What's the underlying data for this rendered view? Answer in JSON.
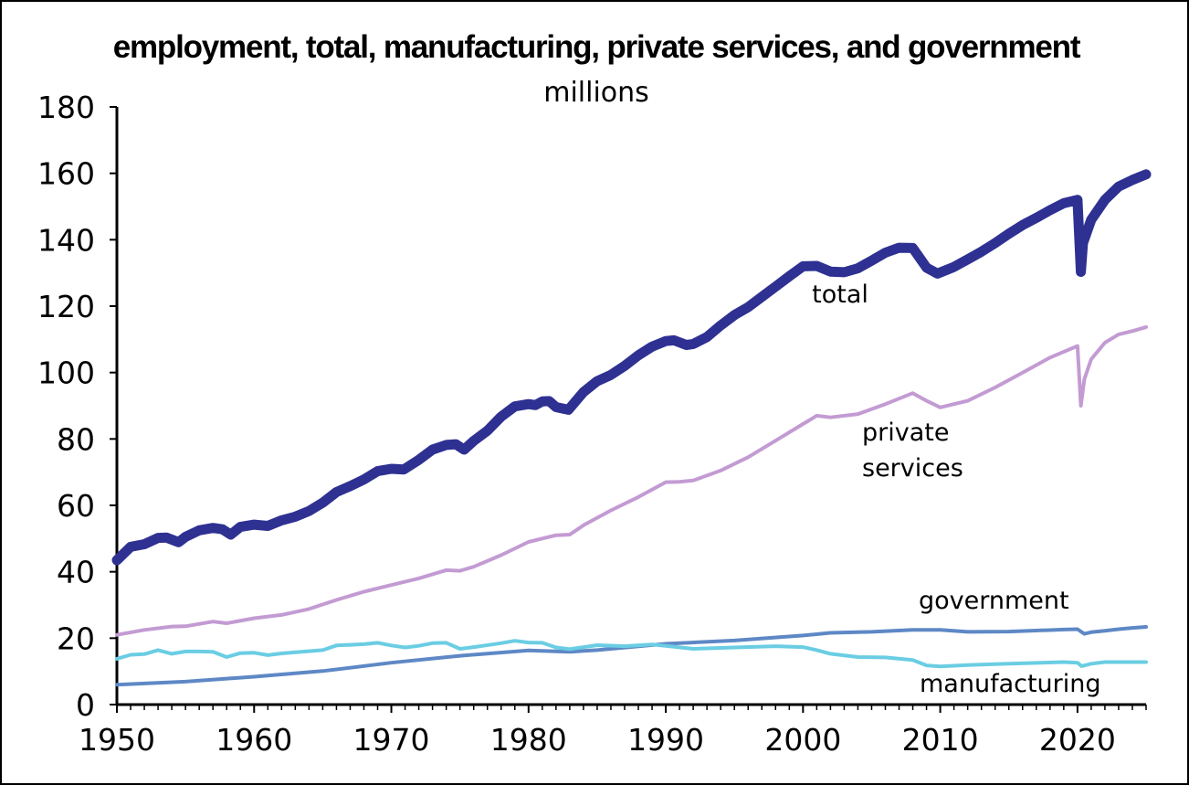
{
  "chart_data": {
    "type": "line",
    "title": "employment, total, manufacturing, private services, and government",
    "subtitle": "millions",
    "xlabel": "",
    "ylabel": "",
    "xlim": [
      1950,
      2025
    ],
    "ylim": [
      0,
      180
    ],
    "y_ticks": [
      0,
      20,
      40,
      60,
      80,
      100,
      120,
      140,
      160,
      180
    ],
    "x_ticks": [
      1950,
      1960,
      1970,
      1980,
      1990,
      2000,
      2010,
      2020
    ],
    "grid": false,
    "legend": "none (labels placed directly on lines)",
    "series": [
      {
        "name": "total",
        "label_lines": [
          "total"
        ],
        "color": "#2E3192",
        "width": 11,
        "x": [
          1950,
          1951,
          1952,
          1953,
          1953.6,
          1954.5,
          1955,
          1956,
          1957,
          1957.7,
          1958.3,
          1959,
          1960,
          1961,
          1962,
          1963,
          1964,
          1965,
          1966,
          1967,
          1968,
          1969,
          1970,
          1970.9,
          1972,
          1973,
          1974,
          1974.7,
          1975.3,
          1976,
          1977,
          1978,
          1979,
          1980,
          1980.5,
          1981,
          1981.5,
          1982,
          1982.9,
          1984,
          1985,
          1986,
          1987,
          1988,
          1989,
          1990,
          1990.6,
          1991.5,
          1992,
          1993,
          1994,
          1995,
          1996,
          1997,
          1998,
          1999,
          2000,
          2001,
          2002,
          2003,
          2004,
          2005,
          2006,
          2007,
          2008,
          2009,
          2009.8,
          2011,
          2012,
          2013,
          2014,
          2015,
          2016,
          2017,
          2018,
          2019,
          2020,
          2020.25,
          2020.4,
          2021,
          2022,
          2023,
          2024,
          2025
        ],
        "values": [
          43.5,
          47.5,
          48.3,
          50.2,
          50.3,
          48.9,
          50.5,
          52.5,
          53.2,
          52.8,
          51.2,
          53.5,
          54.2,
          53.8,
          55.5,
          56.6,
          58.3,
          60.8,
          64.0,
          65.8,
          67.8,
          70.3,
          71.0,
          70.8,
          73.7,
          76.8,
          78.2,
          78.4,
          76.8,
          79.4,
          82.5,
          86.7,
          89.8,
          90.5,
          90.2,
          91.3,
          91.4,
          89.6,
          88.8,
          94.1,
          97.4,
          99.3,
          102.0,
          105.2,
          107.8,
          109.5,
          109.7,
          108.3,
          108.6,
          110.7,
          114.2,
          117.3,
          119.7,
          122.8,
          125.9,
          129.0,
          132.0,
          132.1,
          130.4,
          130.2,
          131.4,
          133.7,
          136.1,
          137.6,
          137.5,
          131.6,
          129.8,
          131.8,
          134.1,
          136.4,
          139.0,
          141.8,
          144.4,
          146.6,
          148.9,
          151.0,
          152.0,
          130.3,
          139.0,
          146.0,
          152.0,
          156.0,
          158.0,
          159.7
        ]
      },
      {
        "name": "private services",
        "label_lines": [
          "private",
          "services"
        ],
        "color": "#C39BD3",
        "width": 4,
        "x": [
          1950,
          1952,
          1954,
          1955,
          1957,
          1958,
          1960,
          1962,
          1964,
          1966,
          1968,
          1970,
          1972,
          1974,
          1975,
          1976,
          1978,
          1980,
          1981,
          1982,
          1983,
          1984,
          1986,
          1988,
          1990,
          1991,
          1992,
          1994,
          1996,
          1998,
          2000,
          2001,
          2002,
          2004,
          2006,
          2008,
          2009,
          2010,
          2012,
          2014,
          2016,
          2018,
          2020,
          2020.25,
          2020.5,
          2021,
          2022,
          2023,
          2024,
          2025
        ],
        "values": [
          21.0,
          22.5,
          23.5,
          23.6,
          25.0,
          24.5,
          26.0,
          27.0,
          28.8,
          31.5,
          34.0,
          36.0,
          38.0,
          40.5,
          40.3,
          41.5,
          45.0,
          49.0,
          50.0,
          51.0,
          51.2,
          54.0,
          58.5,
          62.5,
          67.0,
          67.1,
          67.5,
          70.5,
          74.5,
          79.5,
          84.5,
          87.0,
          86.5,
          87.5,
          90.5,
          93.8,
          91.5,
          89.5,
          91.5,
          95.5,
          100.0,
          104.5,
          108.0,
          90.0,
          98.0,
          104.0,
          109.0,
          111.5,
          112.5,
          113.7
        ]
      },
      {
        "name": "government",
        "label_lines": [
          "government"
        ],
        "color": "#5E88C5",
        "width": 4,
        "x": [
          1950,
          1955,
          1960,
          1965,
          1970,
          1975,
          1980,
          1983,
          1985,
          1990,
          1995,
          2000,
          2002,
          2005,
          2008,
          2010,
          2012,
          2015,
          2019,
          2020,
          2020.5,
          2021,
          2022,
          2023,
          2024,
          2025
        ],
        "values": [
          6.0,
          6.9,
          8.4,
          10.1,
          12.6,
          14.7,
          16.3,
          15.9,
          16.4,
          18.3,
          19.3,
          20.8,
          21.6,
          21.9,
          22.5,
          22.5,
          21.9,
          22.0,
          22.6,
          22.7,
          21.3,
          21.8,
          22.2,
          22.7,
          23.1,
          23.4
        ]
      },
      {
        "name": "manufacturing",
        "label_lines": [
          "manufacturing"
        ],
        "color": "#6ACDE3",
        "width": 4,
        "x": [
          1950,
          1951,
          1952,
          1953,
          1954,
          1955,
          1956,
          1957,
          1958,
          1959,
          1960,
          1961,
          1962,
          1965,
          1966,
          1968,
          1969,
          1970,
          1971,
          1972,
          1973,
          1974,
          1975,
          1976,
          1978,
          1979,
          1980,
          1981,
          1982,
          1983,
          1985,
          1987,
          1989,
          1990,
          1992,
          1995,
          1998,
          2000,
          2001,
          2002,
          2004,
          2006,
          2008,
          2009,
          2010,
          2012,
          2015,
          2019,
          2020,
          2020.3,
          2021,
          2022,
          2025
        ],
        "values": [
          13.8,
          15.0,
          15.2,
          16.4,
          15.3,
          16.0,
          16.0,
          15.9,
          14.3,
          15.5,
          15.6,
          14.9,
          15.4,
          16.4,
          17.8,
          18.2,
          18.6,
          17.8,
          17.2,
          17.7,
          18.5,
          18.6,
          16.8,
          17.3,
          18.5,
          19.2,
          18.7,
          18.6,
          17.2,
          16.7,
          17.9,
          17.6,
          18.1,
          17.7,
          16.8,
          17.2,
          17.6,
          17.3,
          16.4,
          15.3,
          14.3,
          14.2,
          13.4,
          11.8,
          11.5,
          11.9,
          12.3,
          12.8,
          12.6,
          11.6,
          12.3,
          12.8,
          12.8
        ]
      }
    ]
  }
}
